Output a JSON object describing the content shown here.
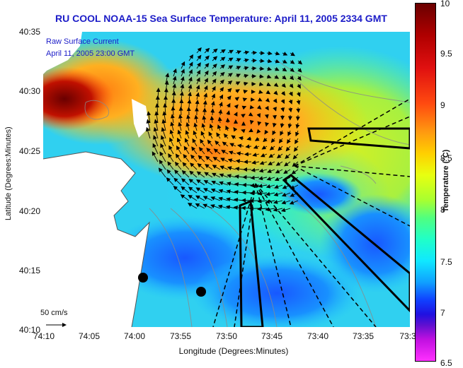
{
  "title": "RU COOL  NOAA-15  Sea Surface Temperature:  April 11, 2005 2334 GMT",
  "legend": {
    "line1": "Raw Surface Current",
    "line2": "April 11, 2005 23:00 GMT",
    "scale_label": "50 cm/s"
  },
  "axes": {
    "xlabel": "Longitude (Degrees:Minutes)",
    "ylabel": "Latitude (Degrees:Minutes)",
    "xticks": [
      "74:10",
      "74:05",
      "74:00",
      "73:55",
      "73:50",
      "73:45",
      "73:40",
      "73:35",
      "73:3"
    ],
    "yticks": [
      "40:35",
      "40:30",
      "40:25",
      "40:20",
      "40:15",
      "40:10"
    ]
  },
  "colorbar": {
    "label": "Temperature (°C)",
    "ticks": [
      "10",
      "9.5",
      "9",
      "8.5",
      "8",
      "7.5",
      "7",
      "6.5"
    ],
    "colors": [
      "#6a0000",
      "#ff4a10",
      "#ffd000",
      "#a8ff30",
      "#20ffc8",
      "#10a0ff",
      "#2010e0",
      "#ff30ff"
    ]
  },
  "map_colors": {
    "land": "#ffffff",
    "warm": "#ff8a20",
    "hot": "#8a0000",
    "mid": "#b8e840",
    "cool": "#30d8e0",
    "cold": "#1878ff",
    "arrow": "#000000",
    "contour": "#888888"
  }
}
